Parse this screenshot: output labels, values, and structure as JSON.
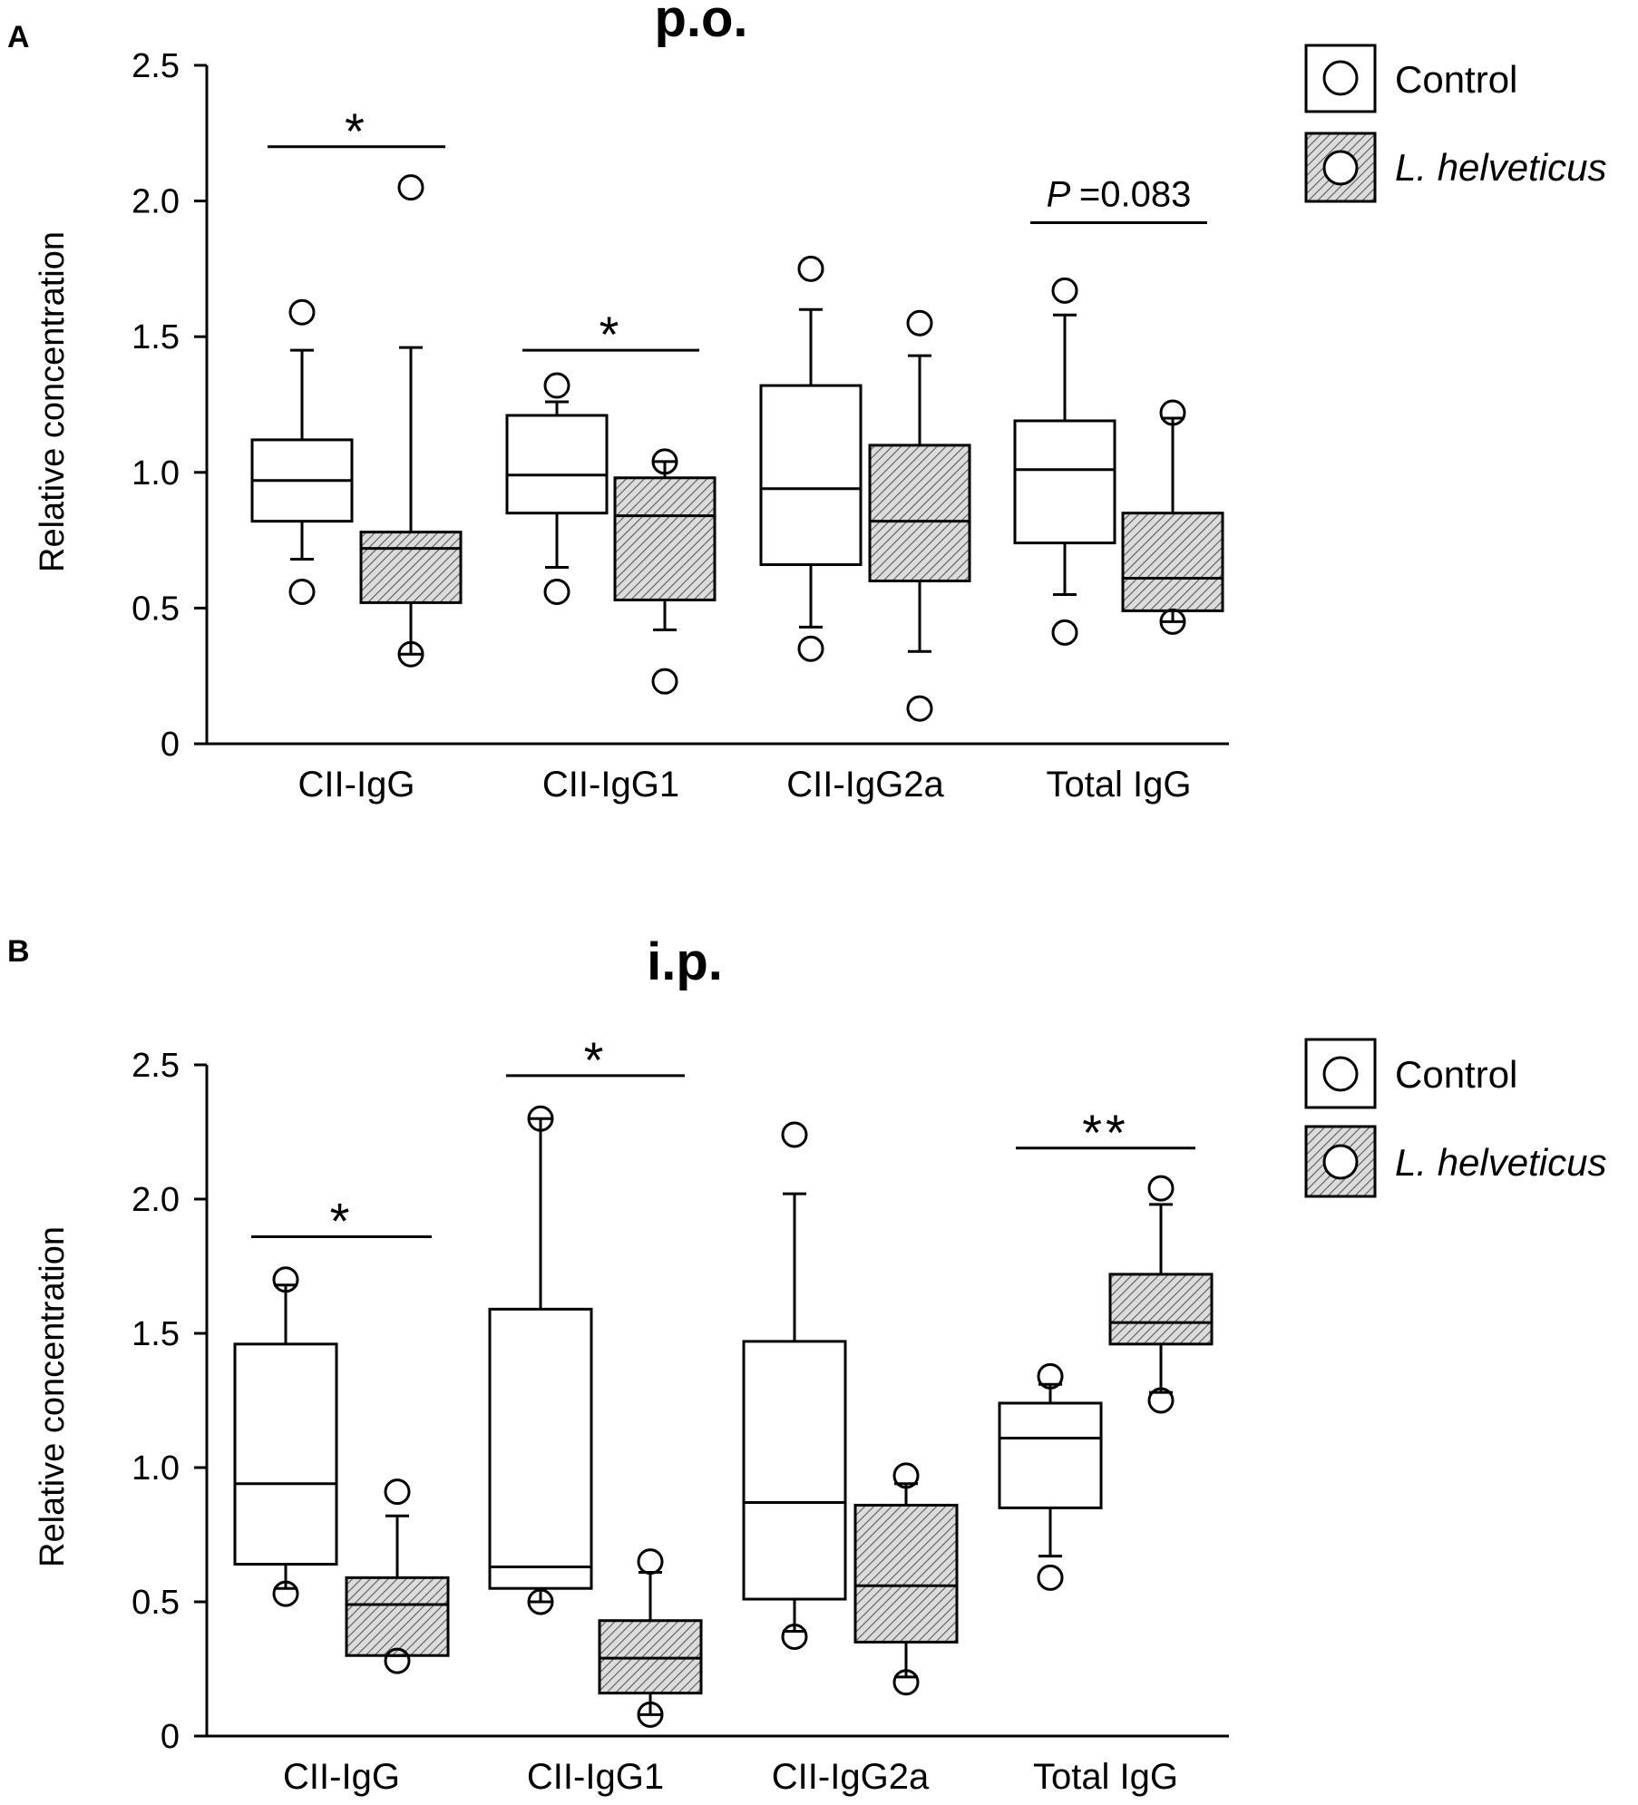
{
  "chart_data": [
    {
      "panel": "A",
      "type": "box",
      "title": "p.o.",
      "xlabel": "",
      "ylabel": "Relative concentration",
      "ylim": [
        0,
        2.5
      ],
      "yticks": [
        0,
        0.5,
        1.0,
        1.5,
        2.0,
        2.5
      ],
      "ytick_labels": [
        "0",
        "0.5",
        "1.0",
        "1.5",
        "2.0",
        "2.5"
      ],
      "categories": [
        "CII-IgG",
        "CII-IgG1",
        "CII-IgG2a",
        "Total IgG"
      ],
      "legend": {
        "placement": "top-right",
        "entries": [
          "Control",
          "L. helveticus"
        ]
      },
      "series": [
        {
          "name": "Control",
          "boxes": [
            {
              "category": "CII-IgG",
              "whisker_low": 0.68,
              "q1": 0.82,
              "median": 0.97,
              "q3": 1.12,
              "whisker_high": 1.45,
              "outliers": [
                0.56,
                1.59
              ]
            },
            {
              "category": "CII-IgG1",
              "whisker_low": 0.65,
              "q1": 0.85,
              "median": 0.99,
              "q3": 1.21,
              "whisker_high": 1.26,
              "outliers": [
                0.56,
                1.32
              ]
            },
            {
              "category": "CII-IgG2a",
              "whisker_low": 0.43,
              "q1": 0.66,
              "median": 0.94,
              "q3": 1.32,
              "whisker_high": 1.6,
              "outliers": [
                0.35,
                1.75
              ]
            },
            {
              "category": "Total IgG",
              "whisker_low": 0.55,
              "q1": 0.74,
              "median": 1.01,
              "q3": 1.19,
              "whisker_high": 1.58,
              "outliers": [
                0.41,
                1.67
              ]
            }
          ]
        },
        {
          "name": "L. helveticus",
          "boxes": [
            {
              "category": "CII-IgG",
              "whisker_low": 0.33,
              "q1": 0.52,
              "median": 0.72,
              "q3": 0.78,
              "whisker_high": 1.46,
              "outliers": [
                0.33,
                2.05
              ]
            },
            {
              "category": "CII-IgG1",
              "whisker_low": 0.42,
              "q1": 0.53,
              "median": 0.84,
              "q3": 0.98,
              "whisker_high": 1.04,
              "outliers": [
                0.23,
                1.04
              ]
            },
            {
              "category": "CII-IgG2a",
              "whisker_low": 0.34,
              "q1": 0.6,
              "median": 0.82,
              "q3": 1.1,
              "whisker_high": 1.43,
              "outliers": [
                0.13,
                1.55
              ]
            },
            {
              "category": "Total IgG",
              "whisker_low": 0.45,
              "q1": 0.49,
              "median": 0.61,
              "q3": 0.85,
              "whisker_high": 1.2,
              "outliers": [
                0.45,
                1.22
              ]
            }
          ]
        }
      ],
      "significance": [
        {
          "category": "CII-IgG",
          "label": "*",
          "y": 2.2
        },
        {
          "category": "CII-IgG1",
          "label": "*",
          "y": 1.45
        },
        {
          "category": "Total IgG",
          "label_prefix": "P",
          "label": "=0.083",
          "y": 1.92
        }
      ]
    },
    {
      "panel": "B",
      "type": "box",
      "title": "i.p.",
      "xlabel": "",
      "ylabel": "Relative concentration",
      "ylim": [
        0,
        2.5
      ],
      "yticks": [
        0,
        0.5,
        1.0,
        1.5,
        2.0,
        2.5
      ],
      "ytick_labels": [
        "0",
        "0.5",
        "1.0",
        "1.5",
        "2.0",
        "2.5"
      ],
      "categories": [
        "CII-IgG",
        "CII-IgG1",
        "CII-IgG2a",
        "Total IgG"
      ],
      "legend": {
        "placement": "top-right",
        "entries": [
          "Control",
          "L. helveticus"
        ]
      },
      "series": [
        {
          "name": "Control",
          "boxes": [
            {
              "category": "CII-IgG",
              "whisker_low": 0.55,
              "q1": 0.64,
              "median": 0.94,
              "q3": 1.46,
              "whisker_high": 1.68,
              "outliers": [
                0.53,
                1.7
              ]
            },
            {
              "category": "CII-IgG1",
              "whisker_low": 0.5,
              "q1": 0.55,
              "median": 0.63,
              "q3": 1.59,
              "whisker_high": 2.3,
              "outliers": [
                0.5,
                2.3
              ]
            },
            {
              "category": "CII-IgG2a",
              "whisker_low": 0.39,
              "q1": 0.51,
              "median": 0.87,
              "q3": 1.47,
              "whisker_high": 2.02,
              "outliers": [
                0.37,
                2.24
              ]
            },
            {
              "category": "Total IgG",
              "whisker_low": 0.67,
              "q1": 0.85,
              "median": 1.11,
              "q3": 1.24,
              "whisker_high": 1.31,
              "outliers": [
                0.59,
                1.34
              ]
            }
          ]
        },
        {
          "name": "L. helveticus",
          "boxes": [
            {
              "category": "CII-IgG",
              "whisker_low": 0.3,
              "q1": 0.3,
              "median": 0.49,
              "q3": 0.59,
              "whisker_high": 0.82,
              "outliers": [
                0.28,
                0.91
              ]
            },
            {
              "category": "CII-IgG1",
              "whisker_low": 0.08,
              "q1": 0.16,
              "median": 0.29,
              "q3": 0.43,
              "whisker_high": 0.61,
              "outliers": [
                0.08,
                0.65
              ]
            },
            {
              "category": "CII-IgG2a",
              "whisker_low": 0.22,
              "q1": 0.35,
              "median": 0.56,
              "q3": 0.86,
              "whisker_high": 0.94,
              "outliers": [
                0.2,
                0.97
              ]
            },
            {
              "category": "Total IgG",
              "whisker_low": 1.28,
              "q1": 1.46,
              "median": 1.54,
              "q3": 1.72,
              "whisker_high": 1.98,
              "outliers": [
                1.25,
                2.04
              ]
            }
          ]
        }
      ],
      "significance": [
        {
          "category": "CII-IgG",
          "label": "*",
          "y": 1.86
        },
        {
          "category": "CII-IgG1",
          "label": "*",
          "y": 2.46
        },
        {
          "category": "Total IgG",
          "label": "**",
          "y": 2.19
        }
      ]
    }
  ],
  "style": {
    "control_fill": "#ffffff",
    "treatment_fill": "#d8d8d8",
    "hatch_color": "#555555",
    "stroke": "#000000"
  }
}
